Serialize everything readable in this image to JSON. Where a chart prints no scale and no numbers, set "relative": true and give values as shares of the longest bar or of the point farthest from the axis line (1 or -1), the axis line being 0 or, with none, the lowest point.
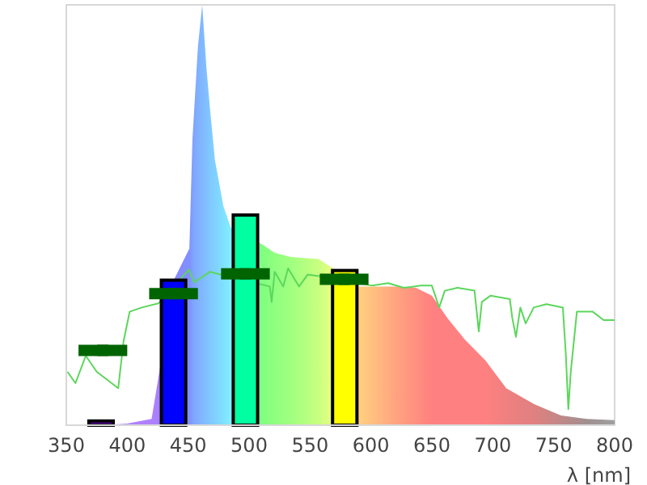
{
  "chart_data": {
    "type": "area",
    "relative": true,
    "xlabel": "λ [nm]",
    "xlim": [
      350,
      800
    ],
    "xticks": [
      350,
      400,
      450,
      500,
      550,
      600,
      650,
      700,
      750,
      800
    ],
    "tick_labels": "x",
    "grid": false,
    "series": [
      {
        "x": [
          350,
          370,
          380,
          400,
          420,
          430,
          439,
          451,
          453.5,
          458,
          461.5,
          465,
          468,
          472,
          479,
          485,
          511,
          521,
          534.5,
          557,
          568,
          590,
          623,
          637,
          650,
          663,
          677,
          694,
          711,
          734,
          756,
          777,
          800
        ],
        "values": [
          0,
          0,
          0,
          0.004,
          0.015,
          null,
          0.35,
          0.42,
          0.68,
          0.9,
          1,
          0.85,
          0.75,
          0.63,
          0.52,
          0.47,
          0.43,
          0.41,
          0.4,
          0.395,
          0.375,
          0.33,
          0.33,
          0.327,
          0.308,
          0.254,
          0.204,
          0.154,
          0.088,
          0.05,
          0.023,
          0.015,
          0.012
        ],
        "colors": [
          "#b080ff",
          "#b080ff",
          "#b080ff",
          "#b080ff",
          "#b080ff",
          "#a080ff",
          "#8888ff",
          "#8090ff",
          "#80a0ff",
          "#80b0ff",
          "#80b8ff",
          "#80c0ff",
          "#80c8ff",
          "#80d0ff",
          "#80e0ff",
          "#80f0ff",
          "#80ff80",
          "#90ff80",
          "#a0ff80",
          "#c8ff80",
          "#e8ff80",
          "#ffd080",
          "#ffa080",
          "#ff9080",
          "#ff8080",
          "#ff8080",
          "#ff8080",
          "#ff8080",
          "#f08080",
          "#e08080",
          "#c08888",
          "#a09090",
          "#a0a0a0"
        ]
      },
      {
        "type": "line",
        "color": "#5cd65c",
        "x": [
          351,
          357.5,
          366,
          375,
          384,
          392.6,
          397,
          402,
          412,
          425.7,
          450.5,
          455,
          468,
          477,
          517,
          518.5,
          521,
          528,
          532,
          541,
          548,
          557,
          601,
          614,
          627,
          641,
          650,
          656,
          660.6,
          671,
          685,
          688.5,
          691,
          698,
          714,
          716,
          719,
          722.6,
          727,
          733.6,
          744,
          757.5,
          760,
          762,
          764,
          769,
          782,
          791,
          800
        ],
        "values": [
          0.127,
          0.1,
          0.165,
          0.127,
          null,
          0.088,
          0.2,
          0.27,
          0.28,
          0.29,
          0.37,
          0.34,
          0.365,
          0.358,
          0.33,
          0.293,
          0.365,
          0.33,
          0.373,
          0.33,
          0.358,
          0.355,
          0.332,
          0.338,
          0.327,
          0.332,
          0.332,
          0.28,
          0.32,
          0.327,
          0.32,
          0.223,
          0.293,
          0.308,
          0.3,
          0.255,
          0.21,
          0.28,
          0.242,
          0.28,
          0.288,
          0.28,
          0.165,
          0.038,
          0.127,
          0.27,
          0.27,
          0.25,
          0.25
        ]
      },
      {
        "type": "bar",
        "x": [
          378.5,
          438,
          497,
          578.5
        ],
        "values": [
          0.01,
          0.345,
          0.5,
          0.368
        ],
        "colors": [
          "#7000c0",
          "#0000ff",
          "#00ffa0",
          "#ffff00"
        ]
      },
      {
        "type": "scatter",
        "color": "#006400",
        "marker": "square",
        "x": [
          380,
          438,
          497,
          578
        ],
        "values": [
          0.178,
          0.313,
          0.36,
          0.347
        ],
        "xerrors": [
          20,
          20,
          20,
          20
        ]
      }
    ]
  }
}
